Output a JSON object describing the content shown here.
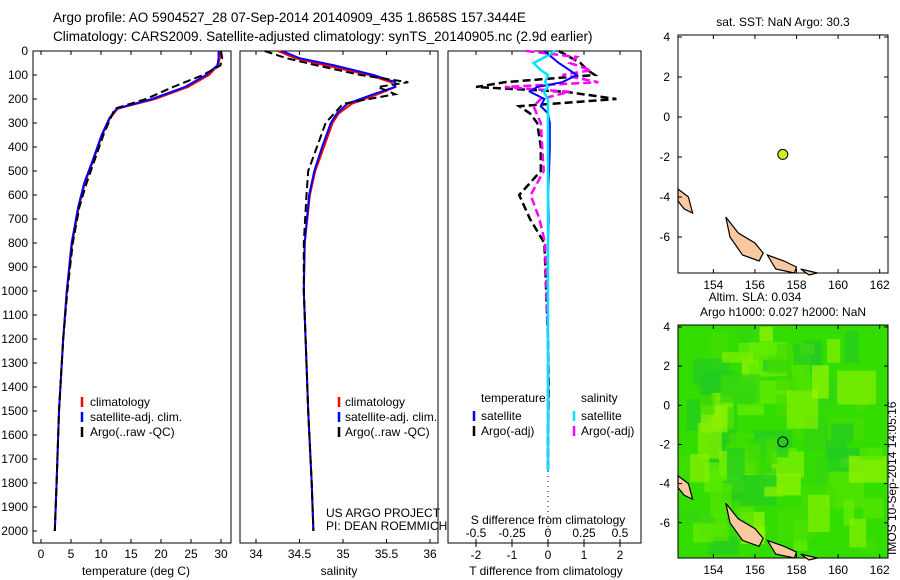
{
  "header": {
    "line1": "Argo profile: AO 5904527_28 07-Sep-2014 20140909_435 1.8658S 157.3444E",
    "line2": "Climatology: CARS2009. Satellite-adjusted climatology: synTS_20140905.nc (2.9d earlier)"
  },
  "footer_stamp": "IMOS 10-Sep-2014 14:05:16",
  "colors": {
    "climatology": "#ff0000",
    "satellite": "#0000ff",
    "argo": "#000000",
    "sal_satellite": "#00e5ff",
    "sal_argo": "#ff00ff",
    "land": "#f8c8a0",
    "ocean_ssh": "#33dd00"
  },
  "chart_data": [
    {
      "type": "line",
      "id": "temperature",
      "xlabel": "temperature (deg C)",
      "xlim": [
        -1.5,
        31.5
      ],
      "ylim": [
        0,
        2050
      ],
      "yreversed": true,
      "xticks": [
        "0",
        "5",
        "10",
        "15",
        "20",
        "25",
        "30"
      ],
      "yticks": [
        "0",
        "100",
        "200",
        "300",
        "400",
        "500",
        "600",
        "700",
        "800",
        "900",
        "1000",
        "1100",
        "1200",
        "1300",
        "1400",
        "1500",
        "1600",
        "1700",
        "1800",
        "1900",
        "2000"
      ],
      "depth": [
        0,
        30,
        60,
        100,
        150,
        200,
        240,
        280,
        350,
        450,
        550,
        650,
        800,
        1000,
        1200,
        1500,
        1800,
        2000
      ],
      "series": [
        {
          "name": "climatology",
          "values": [
            29.9,
            29.8,
            29.5,
            28,
            24.5,
            19,
            12.8,
            11.5,
            10.2,
            8.8,
            7.3,
            6.3,
            5.2,
            4.3,
            3.7,
            3.0,
            2.6,
            2.3
          ]
        },
        {
          "name": "satellite-adj. clim.",
          "values": [
            29.6,
            29.6,
            29.4,
            27.5,
            24,
            18.5,
            12.6,
            11.4,
            10.1,
            8.7,
            7.2,
            6.2,
            5.1,
            4.3,
            3.7,
            3.0,
            2.6,
            2.3
          ]
        },
        {
          "name": "Argo(..raw -QC)",
          "values": [
            30.0,
            30.2,
            29.9,
            27,
            22,
            17.5,
            12.3,
            11.6,
            10.4,
            9.0,
            7.6,
            6.4,
            5.3,
            4.4,
            3.7,
            3.0,
            2.6,
            2.3
          ]
        }
      ],
      "legend": [
        "climatology",
        "satellite-adj. clim.",
        "Argo(..raw -QC)"
      ]
    },
    {
      "type": "line",
      "id": "salinity",
      "xlabel": "salinity",
      "xlim": [
        33.8,
        36.15
      ],
      "ylim": [
        0,
        2050
      ],
      "yreversed": true,
      "xticks": [
        "34",
        "34.5",
        "35",
        "35.5",
        "36"
      ],
      "depth": [
        0,
        30,
        60,
        100,
        130,
        150,
        180,
        220,
        260,
        300,
        400,
        500,
        600,
        800,
        1000,
        1200,
        1500,
        1800,
        2000
      ],
      "series": [
        {
          "name": "climatology",
          "values": [
            34.25,
            34.45,
            34.8,
            35.3,
            35.55,
            35.6,
            35.4,
            35.1,
            34.95,
            34.88,
            34.78,
            34.68,
            34.62,
            34.56,
            34.55,
            34.57,
            34.6,
            34.64,
            34.66
          ]
        },
        {
          "name": "satellite-adj. clim.",
          "values": [
            34.3,
            34.5,
            34.9,
            35.35,
            35.6,
            35.6,
            35.35,
            35.05,
            34.93,
            34.86,
            34.76,
            34.67,
            34.61,
            34.56,
            34.55,
            34.57,
            34.6,
            34.64,
            34.66
          ]
        },
        {
          "name": "Argo(..raw -QC)",
          "values": [
            34.1,
            34.35,
            34.7,
            35.2,
            35.75,
            35.4,
            35.6,
            35.0,
            34.9,
            34.8,
            34.7,
            34.6,
            34.58,
            34.55,
            34.55,
            34.57,
            34.6,
            34.64,
            34.66
          ]
        }
      ],
      "legend": [
        "climatology",
        "satellite-adj. clim.",
        "Argo(..raw -QC)"
      ],
      "annotation": [
        "US ARGO PROJECT",
        "PI: DEAN ROEMMICH"
      ]
    },
    {
      "type": "line",
      "id": "difference",
      "xlabel": "T difference from climatology",
      "xlabel_top": "S difference from climatology",
      "xlim": [
        -2.8,
        2.8
      ],
      "xlim_s": [
        -0.7,
        0.7
      ],
      "ylim": [
        0,
        2050
      ],
      "yreversed": true,
      "xticks": [
        "-2",
        "-1",
        "0",
        "1",
        "2"
      ],
      "xticks_top": [
        "-0.5",
        "-0.25",
        "0",
        "0.25",
        "0.5"
      ],
      "depth": [
        0,
        25,
        50,
        80,
        100,
        130,
        150,
        170,
        200,
        230,
        260,
        300,
        400,
        500,
        600,
        700,
        800,
        1000,
        1200,
        1400,
        1600,
        1750
      ],
      "series": [
        {
          "name": "temperature satellite",
          "values": [
            -0.1,
            0.1,
            0.3,
            0.6,
            0.8,
            0.4,
            -0.3,
            -0.5,
            -0.1,
            -0.2,
            0,
            0.05,
            0.05,
            0.03,
            0,
            0.02,
            0,
            0,
            0,
            0.01,
            0,
            0
          ]
        },
        {
          "name": "temperature Argo(-adj)",
          "values": [
            0.3,
            0.6,
            0.9,
            1.1,
            1.3,
            -1.2,
            -2.0,
            0.5,
            1.9,
            -0.8,
            -0.5,
            -0.3,
            -0.2,
            -0.2,
            -0.8,
            -0.5,
            -0.1,
            -0.05,
            0,
            0.02,
            0,
            0
          ]
        },
        {
          "name": "salinity satellite",
          "values": [
            0.05,
            -0.02,
            -0.1,
            -0.05,
            0.0,
            -0.02,
            0.0,
            -0.03,
            0.0,
            0.0,
            0,
            0,
            0,
            0,
            0,
            0,
            0,
            0,
            0,
            0,
            0,
            0
          ]
        },
        {
          "name": "salinity Argo(-adj)",
          "values": [
            -0.15,
            0.2,
            0.15,
            0.3,
            0.1,
            0.35,
            -0.3,
            0.15,
            -0.05,
            -0.1,
            -0.08,
            -0.05,
            -0.04,
            -0.03,
            -0.12,
            -0.06,
            -0.02,
            -0.01,
            0,
            0,
            0,
            0
          ]
        }
      ],
      "legend": {
        "temperature": "temperature",
        "salinity": "salinity",
        "entries": [
          "satellite",
          "Argo(-adj)",
          "satellite",
          "Argo(-adj)"
        ]
      }
    },
    {
      "type": "scatter",
      "id": "sst_map",
      "title": "sat. SST: NaN Argo: 30.3",
      "xlim": [
        152.3,
        162.4
      ],
      "ylim": [
        -7.8,
        4.1
      ],
      "xticks": [
        "154",
        "156",
        "158",
        "160",
        "162"
      ],
      "yticks": [
        "4",
        "2",
        "0",
        "-2",
        "-4",
        "-6"
      ],
      "point": {
        "lon": 157.34,
        "lat": -1.87
      }
    },
    {
      "type": "heatmap",
      "id": "sla_map",
      "title": "Altim. SLA: 0.034",
      "subtitle": "Argo h1000: 0.027 h2000: NaN",
      "xlim": [
        152.3,
        162.4
      ],
      "ylim": [
        -7.8,
        4.1
      ],
      "xticks": [
        "154",
        "156",
        "158",
        "160",
        "162"
      ],
      "yticks": [
        "4",
        "2",
        "0",
        "-2",
        "-4",
        "-6"
      ],
      "point": {
        "lon": 157.34,
        "lat": -1.87
      }
    }
  ]
}
